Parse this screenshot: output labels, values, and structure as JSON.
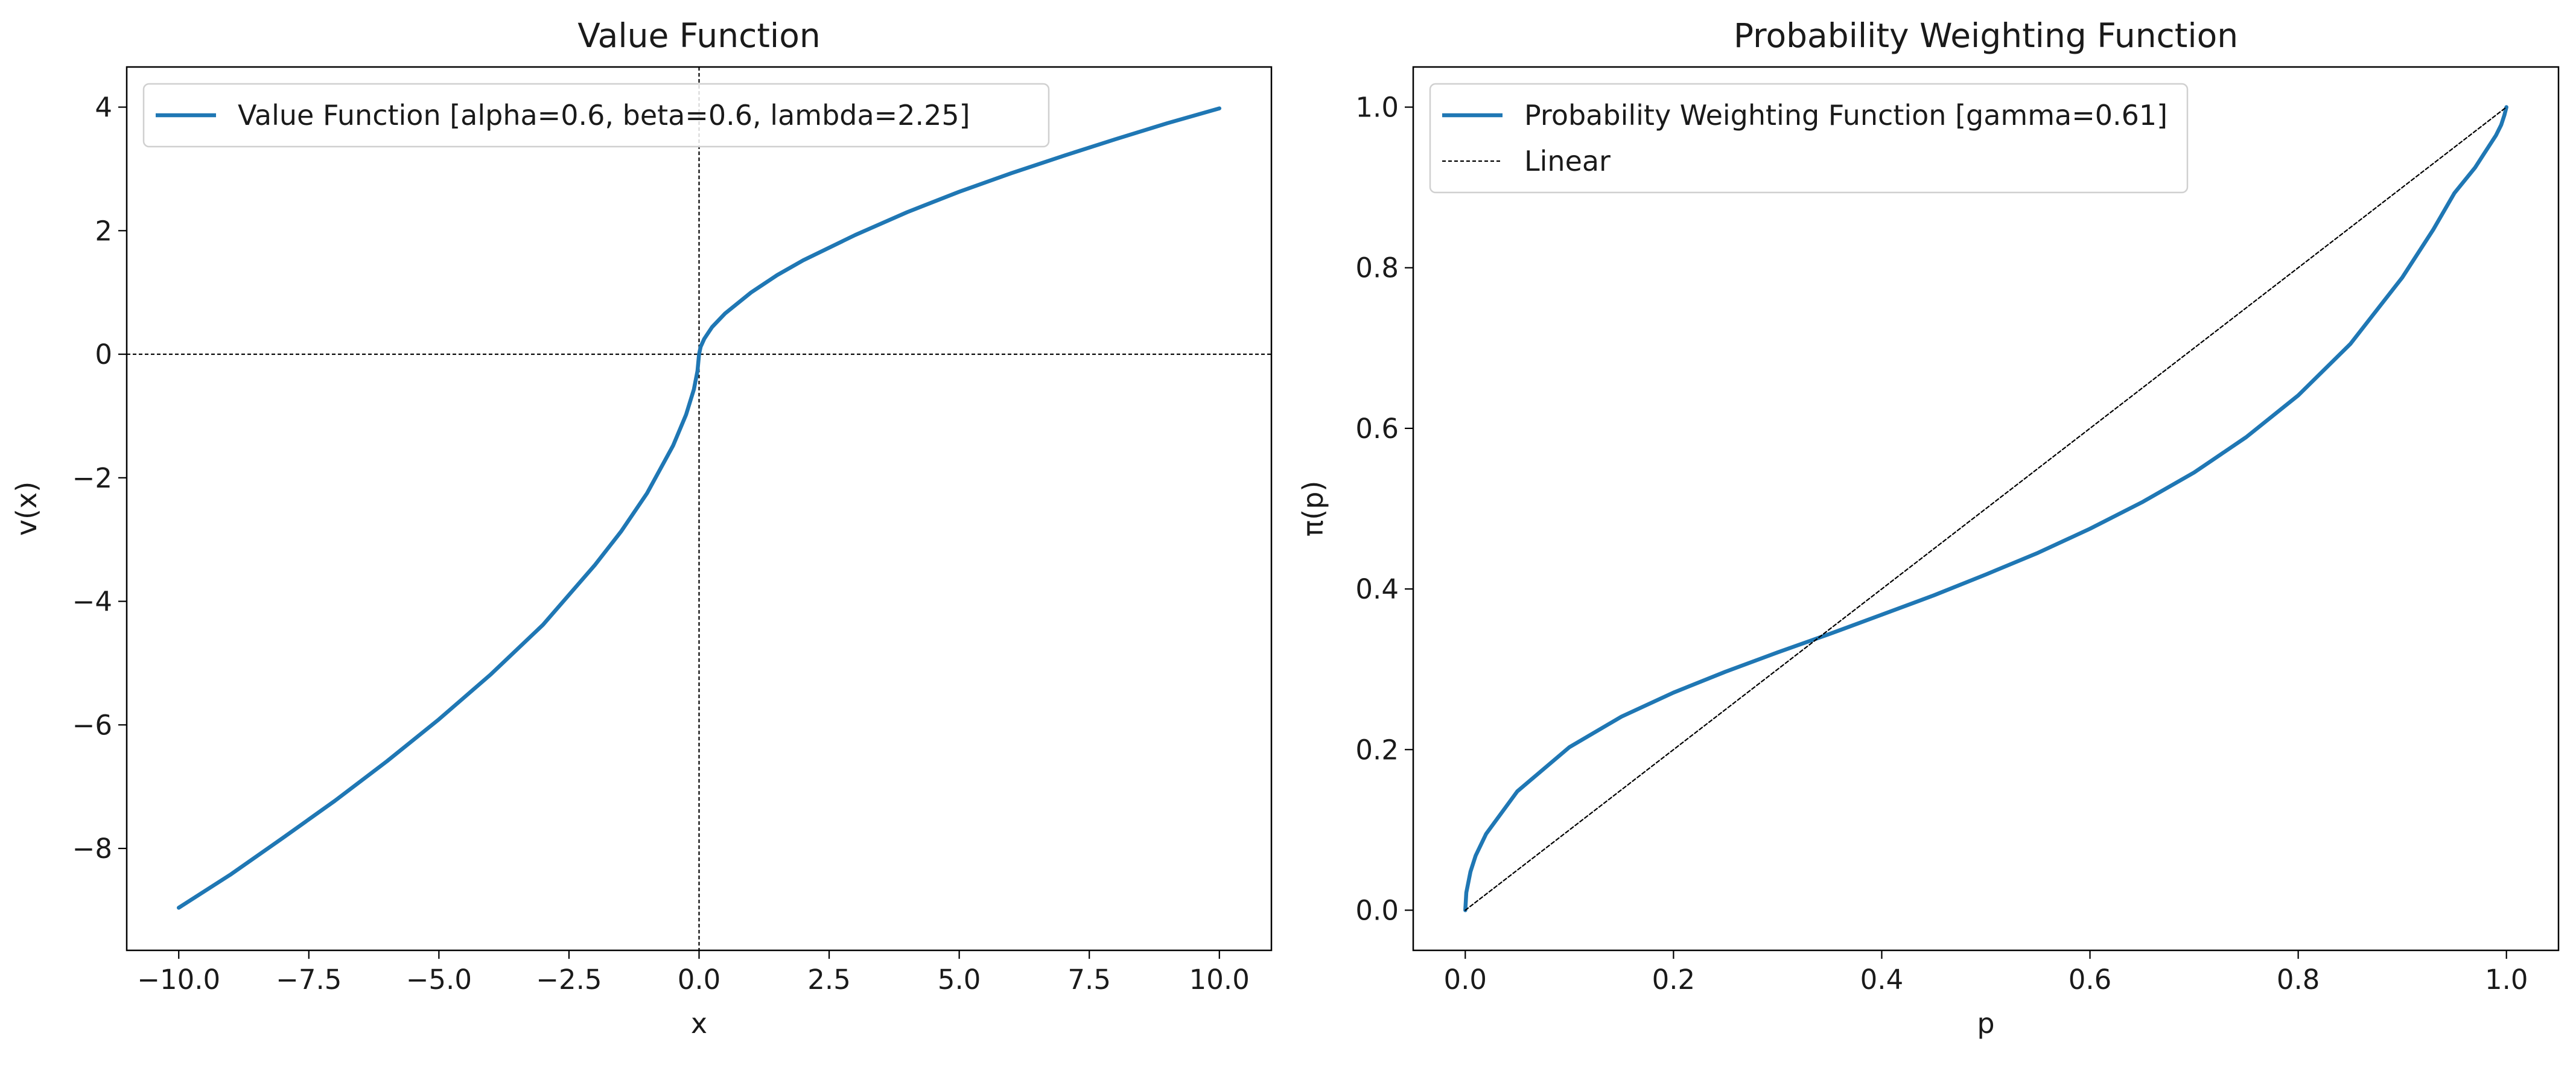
{
  "colors": {
    "curve": "#1f77b4",
    "reference": "#000000",
    "axis": "#000000",
    "legend_border": "#d0d0d0"
  },
  "chart_data": [
    {
      "type": "line",
      "title": "Value Function",
      "xlabel": "x",
      "ylabel": "v(x)",
      "xlim": [
        -11.0,
        11.0
      ],
      "ylim": [
        -9.65,
        4.65
      ],
      "xticks": [
        -10.0,
        -7.5,
        -5.0,
        -2.5,
        0.0,
        2.5,
        5.0,
        7.5,
        10.0
      ],
      "xtick_labels": [
        "−10.0",
        "−7.5",
        "−5.0",
        "−2.5",
        "0.0",
        "2.5",
        "5.0",
        "7.5",
        "10.0"
      ],
      "yticks": [
        4,
        2,
        0,
        -2,
        -4,
        -6,
        -8
      ],
      "ytick_labels": [
        "4",
        "2",
        "0",
        "−2",
        "−4",
        "−6",
        "−8"
      ],
      "grid": false,
      "legend_position": "upper-left",
      "reference_lines": [
        {
          "orientation": "horizontal",
          "value": 0,
          "style": "dashed"
        },
        {
          "orientation": "vertical",
          "value": 0,
          "style": "dashed"
        }
      ],
      "series": [
        {
          "name": "Value Function [alpha=0.6, beta=0.6, lambda=2.25]",
          "style": "solid",
          "color": "#1f77b4",
          "x": [
            -10,
            -9,
            -8,
            -7,
            -6,
            -5,
            -4,
            -3,
            -2,
            -1.5,
            -1,
            -0.5,
            -0.25,
            -0.1,
            -0.03,
            0,
            0.03,
            0.1,
            0.25,
            0.5,
            1,
            1.5,
            2,
            3,
            4,
            5,
            6,
            7,
            8,
            9,
            10
          ],
          "y": [
            -8.96,
            -8.42,
            -7.83,
            -7.23,
            -6.59,
            -5.91,
            -5.18,
            -4.38,
            -3.41,
            -2.87,
            -2.25,
            -1.48,
            -0.98,
            -0.57,
            -0.27,
            0,
            0.12,
            0.25,
            0.44,
            0.66,
            1.0,
            1.28,
            1.52,
            1.93,
            2.3,
            2.63,
            2.93,
            3.21,
            3.48,
            3.74,
            3.98
          ]
        }
      ]
    },
    {
      "type": "line",
      "title": "Probability Weighting Function",
      "xlabel": "p",
      "ylabel": "π(p)",
      "xlim": [
        -0.05,
        1.05
      ],
      "ylim": [
        -0.05,
        1.05
      ],
      "xticks": [
        0.0,
        0.2,
        0.4,
        0.6,
        0.8,
        1.0
      ],
      "xtick_labels": [
        "0.0",
        "0.2",
        "0.4",
        "0.6",
        "0.8",
        "1.0"
      ],
      "yticks": [
        0.0,
        0.2,
        0.4,
        0.6,
        0.8,
        1.0
      ],
      "ytick_labels": [
        "0.0",
        "0.2",
        "0.4",
        "0.6",
        "0.8",
        "1.0"
      ],
      "grid": false,
      "legend_position": "upper-left",
      "series": [
        {
          "name": "Probability Weighting Function [gamma=0.61]",
          "style": "solid",
          "color": "#1f77b4",
          "x": [
            0,
            0.001,
            0.005,
            0.01,
            0.02,
            0.05,
            0.1,
            0.15,
            0.2,
            0.25,
            0.3,
            0.35,
            0.4,
            0.45,
            0.5,
            0.55,
            0.6,
            0.65,
            0.7,
            0.75,
            0.8,
            0.85,
            0.9,
            0.93,
            0.95,
            0.97,
            0.98,
            0.99,
            0.995,
            0.998,
            1.0
          ],
          "y": [
            0,
            0.022,
            0.048,
            0.068,
            0.095,
            0.148,
            0.203,
            0.241,
            0.271,
            0.297,
            0.321,
            0.344,
            0.368,
            0.392,
            0.418,
            0.445,
            0.475,
            0.508,
            0.545,
            0.589,
            0.641,
            0.705,
            0.788,
            0.848,
            0.893,
            0.925,
            0.945,
            0.965,
            0.978,
            0.99,
            1.0
          ]
        },
        {
          "name": "Linear",
          "style": "dashed",
          "color": "#000000",
          "x": [
            0,
            1
          ],
          "y": [
            0,
            1
          ]
        }
      ]
    }
  ]
}
